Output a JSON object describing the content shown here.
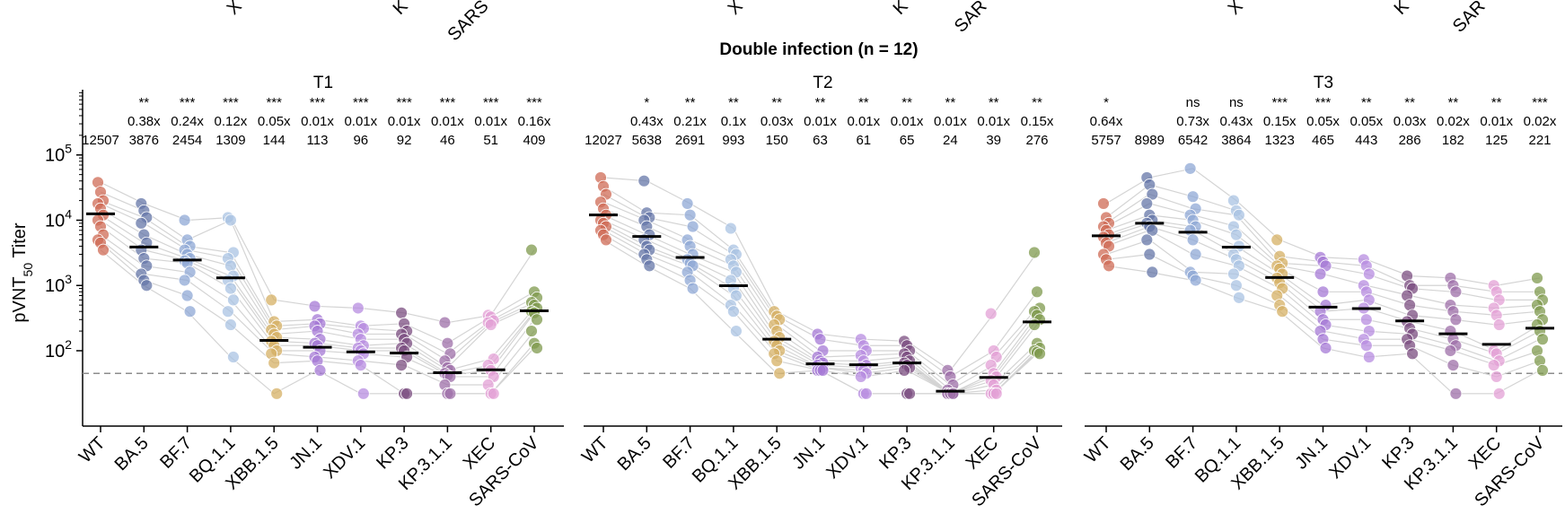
{
  "figure_title": "Double infection (n = 12)",
  "top_cut_labels": [
    "X",
    "K",
    "SARS",
    "X",
    "K",
    "SAR",
    "X",
    "K",
    "SAR"
  ],
  "colors": {
    "WT": "#cf6b55",
    "BA.5": "#6677a8",
    "BF.7": "#8fa8d6",
    "BQ.1.1": "#a9c3e3",
    "XBB.1.5": "#d6b064",
    "JN.1": "#a679d6",
    "XDV.1": "#b78ce0",
    "KP.3": "#7b4d80",
    "KP.3.1.1": "#9e6fa8",
    "XEC": "#e3a0d6",
    "SARS-CoV": "#7f9a4e",
    "median": "#000000",
    "line": "#d4d4d4",
    "threshold": "#8c8c8c"
  },
  "chart_data": [
    {
      "type": "scatter",
      "panel": "T1",
      "title": "T1",
      "ylabel": "pVNT50 Titer",
      "yscale": "log",
      "ylim": [
        7,
        1000000
      ],
      "ytick_labels": [
        "10^2",
        "10^3",
        "10^4",
        "10^5"
      ],
      "threshold": 45,
      "categories": [
        "WT",
        "BA.5",
        "BF.7",
        "BQ.1.1",
        "XBB.1.5",
        "JN.1",
        "XDV.1",
        "KP.3",
        "KP.3.1.1",
        "XEC",
        "SARS-CoV"
      ],
      "medians": [
        12507,
        3876,
        2454,
        1309,
        144,
        113,
        96,
        92,
        46,
        51,
        409
      ],
      "median_labels": [
        "12507",
        "3876",
        "2454",
        "1309",
        "144",
        "113",
        "96",
        "92",
        "46",
        "51",
        "409"
      ],
      "fold_labels": [
        "",
        "0.38x",
        "0.24x",
        "0.12x",
        "0.05x",
        "0.01x",
        "0.01x",
        "0.01x",
        "0.01x",
        "0.01x",
        "0.16x"
      ],
      "significance": [
        "",
        "**",
        "***",
        "***",
        "***",
        "***",
        "***",
        "***",
        "***",
        "***",
        "***"
      ],
      "points": [
        [
          38000,
          27000,
          20000,
          18000,
          15000,
          12000,
          10000,
          8000,
          6000,
          5000,
          4500,
          3500
        ],
        [
          18000,
          14000,
          11000,
          9000,
          6000,
          4500,
          3500,
          2600,
          2000,
          1500,
          1200,
          1000
        ],
        [
          10000,
          5000,
          4000,
          3500,
          3000,
          2600,
          2400,
          2200,
          1600,
          1200,
          700,
          400
        ],
        [
          11000,
          10000,
          3200,
          2600,
          2000,
          1400,
          1200,
          900,
          600,
          400,
          250,
          80
        ],
        [
          600,
          280,
          240,
          210,
          180,
          160,
          140,
          120,
          100,
          90,
          65,
          22
        ],
        [
          480,
          300,
          260,
          240,
          200,
          150,
          130,
          120,
          100,
          80,
          70,
          50
        ],
        [
          450,
          240,
          220,
          180,
          150,
          120,
          110,
          100,
          90,
          70,
          60,
          22
        ],
        [
          380,
          260,
          200,
          180,
          150,
          130,
          110,
          100,
          80,
          60,
          22,
          22
        ],
        [
          270,
          130,
          90,
          70,
          55,
          50,
          45,
          42,
          40,
          30,
          22,
          22
        ],
        [
          350,
          330,
          290,
          270,
          250,
          75,
          60,
          50,
          40,
          30,
          22,
          22
        ],
        [
          3500,
          800,
          650,
          550,
          500,
          450,
          400,
          380,
          300,
          200,
          130,
          110
        ]
      ]
    },
    {
      "type": "scatter",
      "panel": "T2",
      "title": "T2",
      "yscale": "log",
      "ylim": [
        7,
        1000000
      ],
      "threshold": 45,
      "categories": [
        "WT",
        "BA.5",
        "BF.7",
        "BQ.1.1",
        "XBB.1.5",
        "JN.1",
        "XDV.1",
        "KP.3",
        "KP.3.1.1",
        "XEC",
        "SARS-CoV"
      ],
      "medians": [
        12027,
        5638,
        2691,
        993,
        150,
        63,
        61,
        65,
        24,
        39,
        276
      ],
      "median_labels": [
        "12027",
        "5638",
        "2691",
        "993",
        "150",
        "63",
        "61",
        "65",
        "24",
        "39",
        "276"
      ],
      "fold_labels": [
        "",
        "0.43x",
        "0.21x",
        "0.1x",
        "0.03x",
        "0.01x",
        "0.01x",
        "0.01x",
        "0.01x",
        "0.01x",
        "0.15x"
      ],
      "significance": [
        "",
        "*",
        "**",
        "**",
        "**",
        "**",
        "**",
        "**",
        "**",
        "**",
        "**"
      ],
      "points": [
        [
          45000,
          33000,
          25000,
          19000,
          15000,
          12000,
          10000,
          9000,
          8000,
          7000,
          6000,
          5000
        ],
        [
          40000,
          13000,
          11000,
          10000,
          8000,
          6000,
          5000,
          4000,
          3500,
          3000,
          2500,
          2000
        ],
        [
          18000,
          12000,
          8000,
          5000,
          4000,
          3000,
          2500,
          2200,
          2000,
          1600,
          1200,
          900
        ],
        [
          7500,
          3500,
          3000,
          2500,
          2000,
          1600,
          1200,
          900,
          700,
          500,
          400,
          200
        ],
        [
          400,
          340,
          300,
          250,
          200,
          160,
          140,
          120,
          100,
          90,
          70,
          45
        ],
        [
          180,
          150,
          100,
          80,
          70,
          65,
          60,
          55,
          55,
          50,
          50,
          50
        ],
        [
          150,
          120,
          100,
          85,
          70,
          60,
          55,
          50,
          45,
          40,
          22,
          22
        ],
        [
          140,
          120,
          100,
          90,
          80,
          70,
          65,
          60,
          55,
          50,
          22,
          22
        ],
        [
          50,
          40,
          30,
          25,
          22,
          22,
          22,
          22,
          22,
          22,
          22,
          22
        ],
        [
          370,
          100,
          80,
          60,
          45,
          40,
          35,
          30,
          25,
          22,
          22,
          22
        ],
        [
          3200,
          800,
          450,
          400,
          350,
          300,
          250,
          130,
          110,
          100,
          95,
          90
        ]
      ]
    },
    {
      "type": "scatter",
      "panel": "T3",
      "title": "T3",
      "yscale": "log",
      "ylim": [
        7,
        1000000
      ],
      "threshold": 45,
      "categories": [
        "WT",
        "BA.5",
        "BF.7",
        "BQ.1.1",
        "XBB.1.5",
        "JN.1",
        "XDV.1",
        "KP.3",
        "KP.3.1.1",
        "XEC",
        "SARS-CoV"
      ],
      "medians": [
        5757,
        8989,
        6542,
        3864,
        1323,
        465,
        443,
        286,
        182,
        125,
        221
      ],
      "median_labels": [
        "5757",
        "8989",
        "6542",
        "3864",
        "1323",
        "465",
        "443",
        "286",
        "182",
        "125",
        "221"
      ],
      "fold_labels": [
        "0.64x",
        "",
        "0.73x",
        "0.43x",
        "0.15x",
        "0.05x",
        "0.05x",
        "0.03x",
        "0.02x",
        "0.01x",
        "0.02x"
      ],
      "significance": [
        "*",
        "",
        "ns",
        "ns",
        "***",
        "***",
        "**",
        "**",
        "**",
        "**",
        "***"
      ],
      "points": [
        [
          18000,
          11000,
          9000,
          8000,
          7000,
          6000,
          5500,
          4500,
          4000,
          3000,
          2500,
          2000
        ],
        [
          45000,
          35000,
          25000,
          18000,
          12000,
          10000,
          9000,
          8000,
          7000,
          5000,
          3000,
          1600
        ],
        [
          62000,
          23000,
          15000,
          12000,
          10000,
          8000,
          7000,
          5000,
          3000,
          1600,
          1400,
          1200
        ],
        [
          20000,
          14000,
          12000,
          8000,
          6000,
          4000,
          3000,
          2500,
          2000,
          1500,
          1000,
          650
        ],
        [
          5000,
          2800,
          2200,
          2000,
          1800,
          1500,
          1300,
          1100,
          900,
          700,
          500,
          400
        ],
        [
          2700,
          2300,
          2000,
          1500,
          800,
          500,
          400,
          300,
          250,
          200,
          150,
          110
        ],
        [
          2500,
          2000,
          1500,
          1000,
          800,
          600,
          450,
          300,
          200,
          150,
          120,
          80
        ],
        [
          1400,
          1000,
          900,
          700,
          500,
          350,
          280,
          220,
          180,
          150,
          120,
          90
        ],
        [
          1300,
          1000,
          800,
          500,
          400,
          300,
          200,
          150,
          120,
          100,
          60,
          22
        ],
        [
          1000,
          800,
          600,
          450,
          350,
          250,
          100,
          90,
          70,
          60,
          40,
          22
        ],
        [
          1300,
          800,
          600,
          500,
          400,
          300,
          250,
          200,
          150,
          100,
          70,
          50
        ]
      ]
    }
  ]
}
